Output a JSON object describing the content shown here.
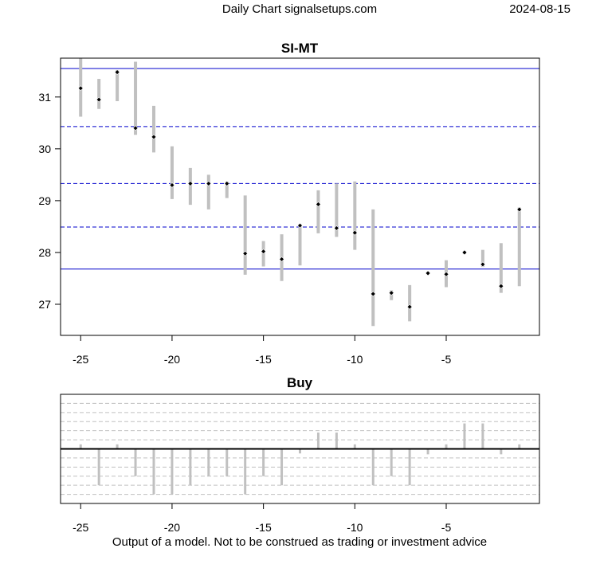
{
  "header": {
    "left": "Daily Chart signalsetups.com",
    "date": "2024-08-15"
  },
  "footer": "Output of a model. Not to be construed as trading or investment advice",
  "chart_data": [
    {
      "type": "range-bar",
      "title": "SI-MT",
      "xlim": [
        -26.1,
        0.1
      ],
      "ylim": [
        26.4,
        31.75
      ],
      "x_ticks": [
        -25,
        -20,
        -15,
        -10,
        -5
      ],
      "y_ticks": [
        27,
        28,
        29,
        30,
        31
      ],
      "grid": false,
      "reference_lines": [
        {
          "y": 31.55,
          "style": "solid",
          "color": "#0000cc"
        },
        {
          "y": 30.43,
          "style": "dashed",
          "color": "#0000cc"
        },
        {
          "y": 29.33,
          "style": "dashed",
          "color": "#0000cc"
        },
        {
          "y": 28.49,
          "style": "dashed",
          "color": "#0000cc"
        },
        {
          "y": 27.68,
          "style": "solid",
          "color": "#0000cc"
        }
      ],
      "bar_color": "#c0c0c0",
      "points": [
        {
          "x": -25,
          "low": 30.62,
          "high": 31.75,
          "close": 31.17
        },
        {
          "x": -24,
          "low": 30.77,
          "high": 31.35,
          "close": 30.95
        },
        {
          "x": -23,
          "low": 30.92,
          "high": 31.52,
          "close": 31.48
        },
        {
          "x": -22,
          "low": 30.27,
          "high": 31.68,
          "close": 30.4
        },
        {
          "x": -21,
          "low": 29.93,
          "high": 30.83,
          "close": 30.23
        },
        {
          "x": -20,
          "low": 29.03,
          "high": 30.05,
          "close": 29.3
        },
        {
          "x": -19,
          "low": 28.92,
          "high": 29.63,
          "close": 29.33
        },
        {
          "x": -18,
          "low": 28.83,
          "high": 29.5,
          "close": 29.33
        },
        {
          "x": -17,
          "low": 29.05,
          "high": 29.37,
          "close": 29.33
        },
        {
          "x": -16,
          "low": 27.57,
          "high": 29.1,
          "close": 27.98
        },
        {
          "x": -15,
          "low": 27.73,
          "high": 28.22,
          "close": 28.02
        },
        {
          "x": -14,
          "low": 27.45,
          "high": 28.35,
          "close": 27.87
        },
        {
          "x": -13,
          "low": 27.75,
          "high": 28.55,
          "close": 28.52
        },
        {
          "x": -12,
          "low": 28.37,
          "high": 29.2,
          "close": 28.93
        },
        {
          "x": -11,
          "low": 28.3,
          "high": 29.33,
          "close": 28.47
        },
        {
          "x": -10,
          "low": 28.05,
          "high": 29.37,
          "close": 28.38
        },
        {
          "x": -9,
          "low": 26.58,
          "high": 28.83,
          "close": 27.2
        },
        {
          "x": -8,
          "low": 27.08,
          "high": 27.27,
          "close": 27.22
        },
        {
          "x": -7,
          "low": 26.67,
          "high": 27.37,
          "close": 26.95
        },
        {
          "x": -6,
          "low": 27.58,
          "high": 27.63,
          "close": 27.6
        },
        {
          "x": -5,
          "low": 27.33,
          "high": 27.85,
          "close": 27.58
        },
        {
          "x": -4,
          "low": 27.97,
          "high": 28.03,
          "close": 28.0
        },
        {
          "x": -3,
          "low": 27.72,
          "high": 28.05,
          "close": 27.77
        },
        {
          "x": -2,
          "low": 27.22,
          "high": 28.18,
          "close": 27.35
        },
        {
          "x": -1,
          "low": 27.35,
          "high": 28.87,
          "close": 28.83
        }
      ]
    },
    {
      "type": "bar",
      "title": "Buy",
      "xlim": [
        -26.1,
        0.1
      ],
      "ylim": [
        -6.0,
        6.0
      ],
      "x_ticks": [
        -25,
        -20,
        -15,
        -10,
        -5
      ],
      "grid": true,
      "zero_line": true,
      "bar_color": "#c0c0c0",
      "x": [
        -25,
        -24,
        -23,
        -22,
        -21,
        -20,
        -19,
        -18,
        -17,
        -16,
        -15,
        -14,
        -13,
        -12,
        -11,
        -10,
        -9,
        -8,
        -7,
        -6,
        -5,
        -4,
        -3,
        -2,
        -1
      ],
      "values": [
        0.5,
        -4.0,
        0.5,
        -3.0,
        -5.0,
        -5.0,
        -4.0,
        -3.0,
        -3.0,
        -5.0,
        -3.0,
        -4.0,
        -0.5,
        1.8,
        1.8,
        0.5,
        -4.0,
        -3.0,
        -4.0,
        -0.6,
        0.5,
        2.8,
        2.8,
        -0.6,
        0.5
      ]
    }
  ]
}
